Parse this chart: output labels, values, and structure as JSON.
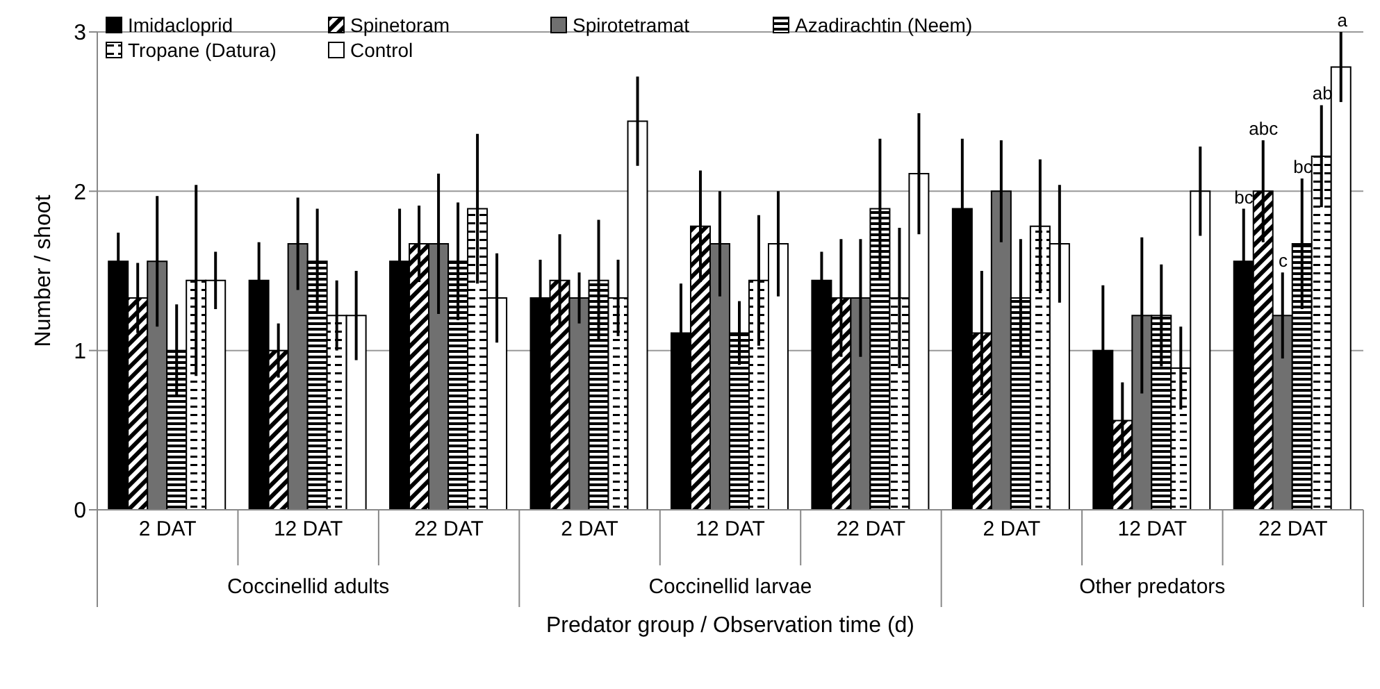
{
  "chart_data": {
    "type": "bar",
    "xlabel": "Predator group / Observation time (d)",
    "ylabel": "Number / shoot",
    "categories": [
      "2 DAT",
      "12 DAT",
      "22 DAT",
      "2 DAT",
      "12 DAT",
      "22 DAT",
      "2 DAT",
      "12 DAT",
      "22 DAT"
    ],
    "series": [
      {
        "name": "Imidacloprid",
        "color": "#000000",
        "values": [
          1.56,
          1.44,
          1.56,
          1.33,
          1.11,
          1.44,
          1.89,
          1.0,
          1.56
        ],
        "errors": [
          0.18,
          0.24,
          0.33,
          0.24,
          0.31,
          0.18,
          0.44,
          0.41,
          0.33
        ]
      },
      {
        "name": "Spinetoram",
        "color": "#000000",
        "values": [
          1.33,
          1.0,
          1.67,
          1.44,
          1.78,
          1.33,
          1.11,
          0.56,
          2.0
        ],
        "errors": [
          0.22,
          0.17,
          0.24,
          0.29,
          0.35,
          0.37,
          0.39,
          0.24,
          0.32
        ]
      },
      {
        "name": "Spirotetramat",
        "color": "#707070",
        "values": [
          1.56,
          1.67,
          1.67,
          1.33,
          1.67,
          1.33,
          2.0,
          1.22,
          1.22
        ],
        "errors": [
          0.41,
          0.29,
          0.44,
          0.16,
          0.33,
          0.37,
          0.32,
          0.49,
          0.27
        ]
      },
      {
        "name": "Azadirachtin (Neem)",
        "color": "#000000",
        "values": [
          1.0,
          1.56,
          1.56,
          1.44,
          1.11,
          1.89,
          1.33,
          1.22,
          1.67
        ],
        "errors": [
          0.29,
          0.33,
          0.37,
          0.38,
          0.2,
          0.44,
          0.37,
          0.32,
          0.41
        ]
      },
      {
        "name": "Tropane (Datura)",
        "color": "#000000",
        "values": [
          1.44,
          1.22,
          1.89,
          1.33,
          1.44,
          1.33,
          1.78,
          0.89,
          2.22
        ],
        "errors": [
          0.6,
          0.22,
          0.47,
          0.24,
          0.41,
          0.44,
          0.42,
          0.26,
          0.32
        ]
      },
      {
        "name": "Control",
        "color": "#ffffff",
        "values": [
          1.44,
          1.22,
          1.33,
          2.44,
          1.67,
          2.11,
          1.67,
          2.0,
          2.78
        ],
        "errors": [
          0.18,
          0.28,
          0.28,
          0.28,
          0.33,
          0.38,
          0.37,
          0.28,
          0.22
        ]
      }
    ],
    "ylim": [
      0,
      3
    ],
    "yticks": [
      0,
      1,
      2,
      3
    ],
    "grid": "y",
    "legend": "top left",
    "annotations": [
      "Coccinellid adults",
      "Coccinellid larvae",
      "Other predators",
      "bc",
      "abc",
      "c",
      "bc",
      "ab",
      "a"
    ]
  }
}
